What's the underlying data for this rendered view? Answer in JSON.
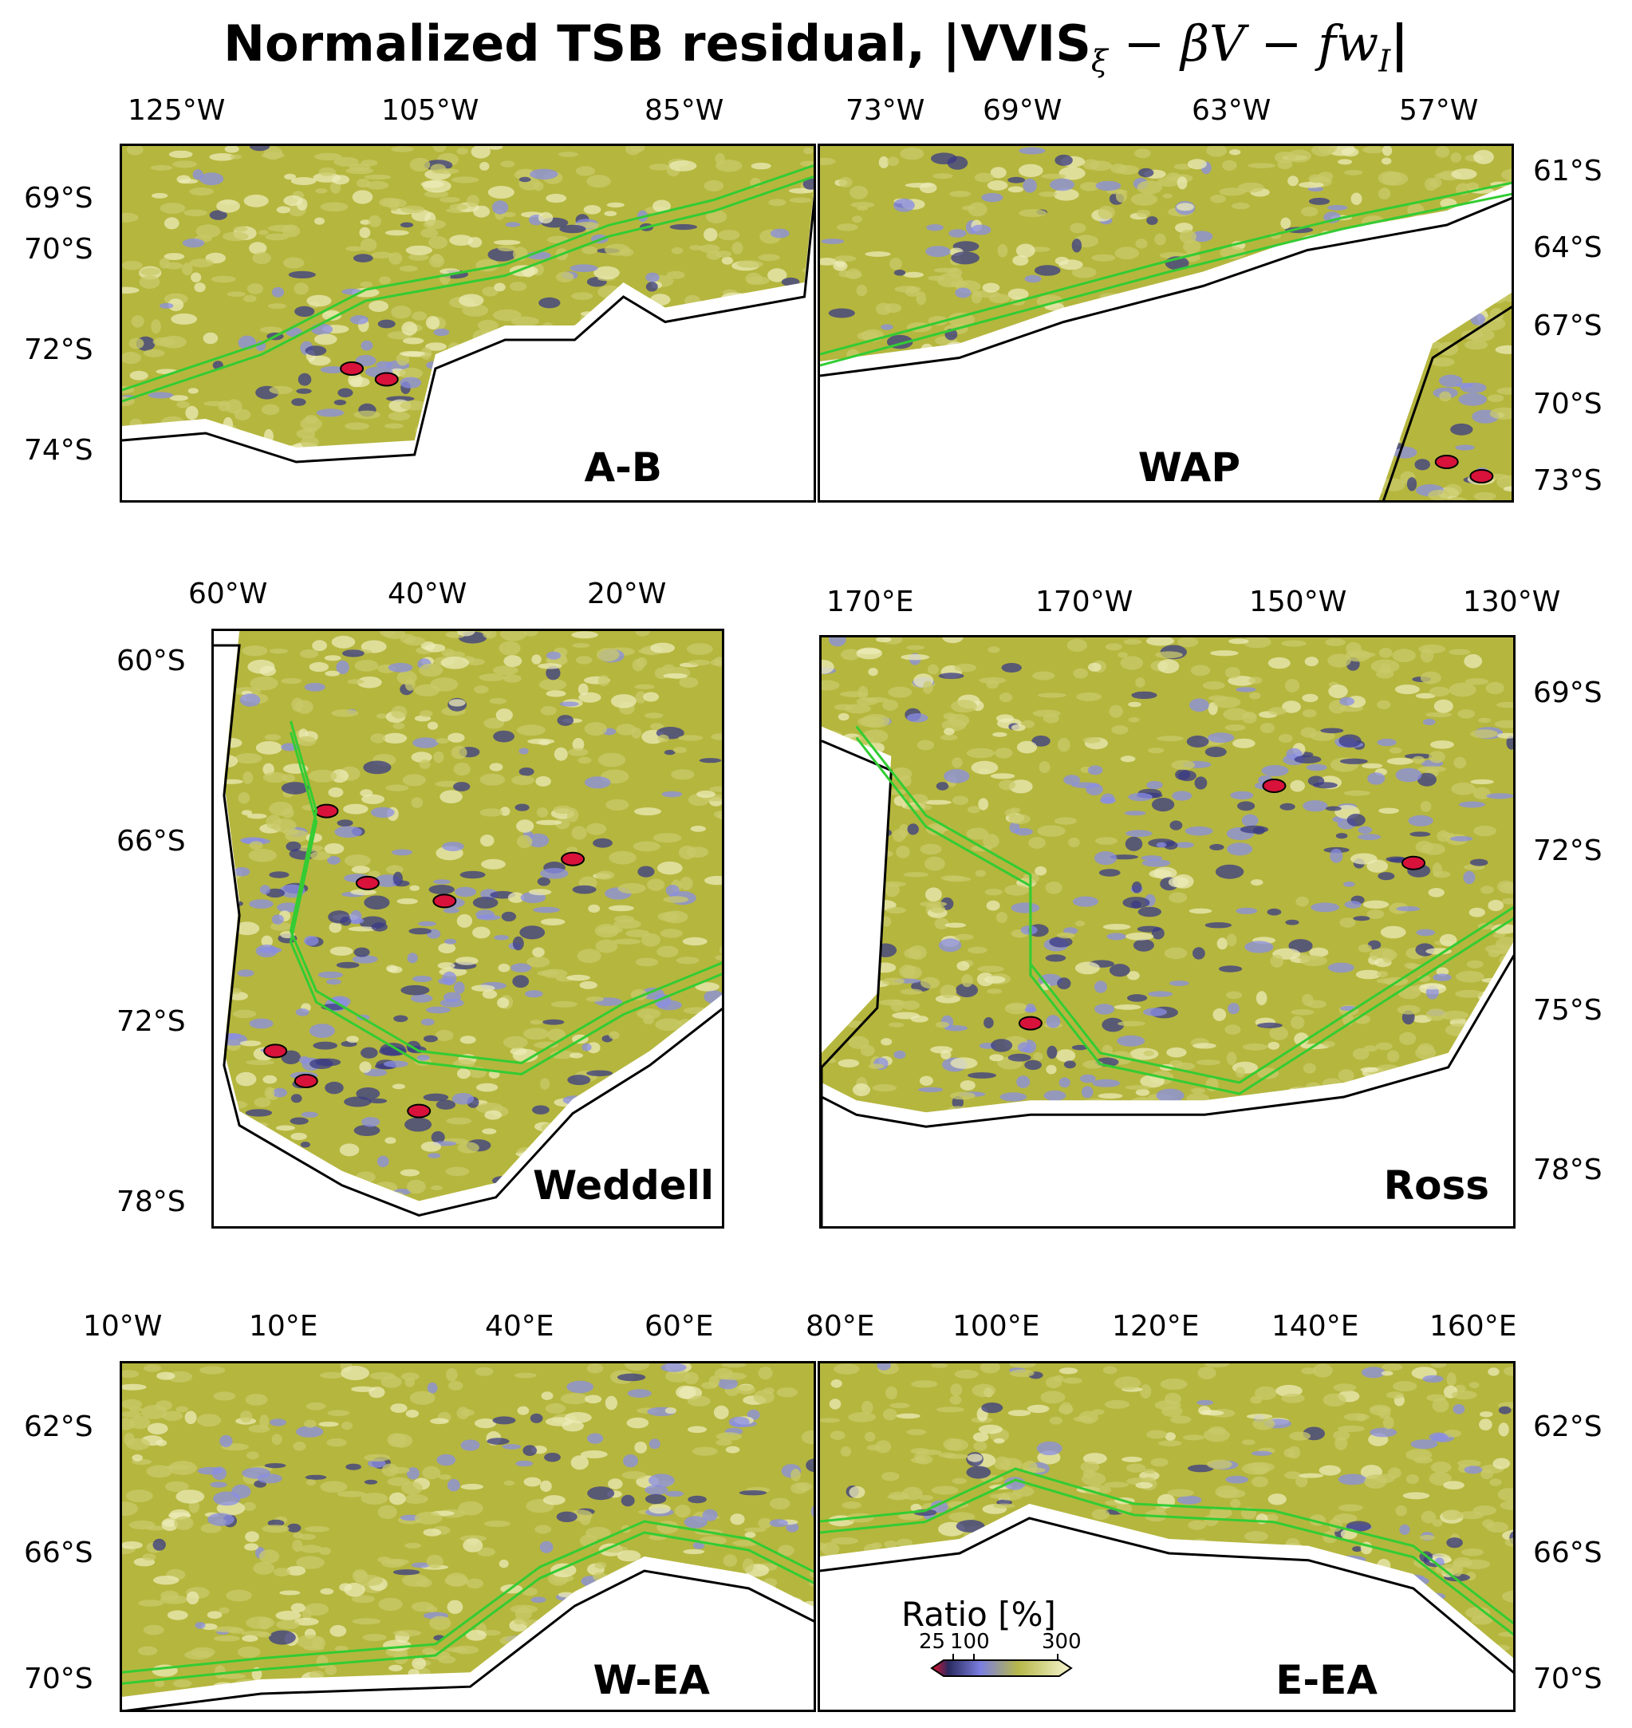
{
  "figure": {
    "title_main": "Normalized TSB residual, |VVIS",
    "title_sub": "ξ",
    "title_rest": " − βV − fw",
    "title_sub2": "I",
    "title_end": "|"
  },
  "colorbar": {
    "label": "Ratio [%]",
    "ticks": [
      "25",
      "100",
      "300"
    ],
    "colors": [
      "#e8102c",
      "#2a2a60",
      "#7b7fe0",
      "#b6b84a",
      "#f5f5d0"
    ]
  },
  "panels": [
    {
      "id": "A-B",
      "label": "A-B",
      "lon_ticks": [
        "125°W",
        "105°W",
        "85°W"
      ],
      "lon_side": "top",
      "lat_ticks": [
        "69°S",
        "70°S",
        "72°S",
        "74°S"
      ],
      "lat_side": "left"
    },
    {
      "id": "WAP",
      "label": "WAP",
      "lon_ticks": [
        "73°W",
        "69°W",
        "63°W",
        "57°W"
      ],
      "lon_side": "top",
      "lat_ticks": [
        "61°S",
        "64°S",
        "67°S",
        "70°S",
        "73°S"
      ],
      "lat_side": "right"
    },
    {
      "id": "Weddell",
      "label": "Weddell",
      "lon_ticks": [
        "60°W",
        "40°W",
        "20°W"
      ],
      "lon_side": "top",
      "lat_ticks": [
        "60°S",
        "66°S",
        "72°S",
        "78°S"
      ],
      "lat_side": "left"
    },
    {
      "id": "Ross",
      "label": "Ross",
      "lon_ticks": [
        "170°E",
        "170°W",
        "150°W",
        "130°W"
      ],
      "lon_side": "top",
      "lat_ticks": [
        "69°S",
        "72°S",
        "75°S",
        "78°S"
      ],
      "lat_side": "right"
    },
    {
      "id": "W-EA",
      "label": "W-EA",
      "lon_ticks": [
        "10°W",
        "10°E",
        "40°E",
        "60°E"
      ],
      "lon_side": "top",
      "lat_ticks": [
        "62°S",
        "66°S",
        "70°S"
      ],
      "lat_side": "left"
    },
    {
      "id": "E-EA",
      "label": "E-EA",
      "lon_ticks": [
        "80°E",
        "100°E",
        "120°E",
        "140°E",
        "160°E"
      ],
      "lon_side": "top",
      "lat_ticks": [
        "62°S",
        "66°S",
        "70°S"
      ],
      "lat_side": "right"
    }
  ],
  "chart_data": {
    "type": "heatmap",
    "title": "Normalized TSB residual, |VVISξ − βV − fwI|",
    "colorbar_label": "Ratio [%]",
    "colorbar_ticks": [
      25,
      100,
      300
    ],
    "panels": [
      "A-B",
      "WAP",
      "Weddell",
      "Ross",
      "W-EA",
      "E-EA"
    ]
  }
}
